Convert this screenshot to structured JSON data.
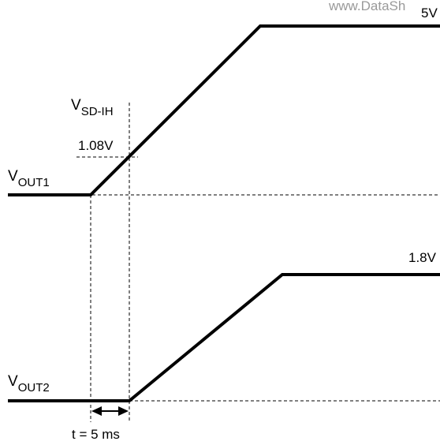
{
  "watermark": "www.DataSh",
  "top_trace": {
    "final_level_label": "5V",
    "name_main": "V",
    "name_sub": "OUT1",
    "threshold_name_main": "V",
    "threshold_name_sub": "SD-IH",
    "threshold_value_label": "1.08V"
  },
  "bottom_trace": {
    "final_level_label": "1.8V",
    "name_main": "V",
    "name_sub": "OUT2"
  },
  "delay": {
    "label": "t = 5 ms"
  },
  "colors": {
    "trace": "#000000",
    "guide": "#000000",
    "watermark": "#9a9a9a",
    "background": "#ffffff"
  }
}
